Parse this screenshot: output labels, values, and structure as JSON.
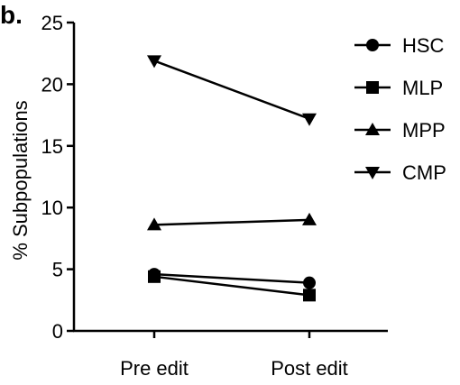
{
  "panel_label": "b.",
  "chart_data": {
    "type": "line",
    "title": "",
    "xlabel": "",
    "ylabel": "% Subpopulations",
    "categories": [
      "Pre edit",
      "Post edit"
    ],
    "ylim": [
      0,
      25
    ],
    "yticks": [
      0,
      5,
      10,
      15,
      20,
      25
    ],
    "grid": false,
    "legend_position": "top-right",
    "series": [
      {
        "name": "HSC",
        "marker": "circle",
        "values": [
          4.6,
          3.9
        ]
      },
      {
        "name": "MLP",
        "marker": "square",
        "values": [
          4.4,
          2.9
        ]
      },
      {
        "name": "MPP",
        "marker": "triangle-up",
        "values": [
          8.6,
          9.0
        ]
      },
      {
        "name": "CMP",
        "marker": "triangle-down",
        "values": [
          21.9,
          17.2
        ]
      }
    ]
  }
}
